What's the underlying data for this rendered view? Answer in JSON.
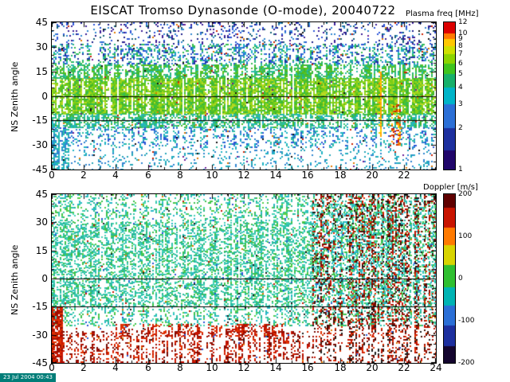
{
  "header": {
    "title": "EISCAT Tromso Dynasonde (O-mode),  20040722"
  },
  "footer": {
    "timestamp": "23 Jul 2004 00:43"
  },
  "chart_data": [
    {
      "type": "heatmap",
      "panel": "plasma-frequency",
      "ylabel": "NS Zenith angle",
      "xlabel": "",
      "xlim": [
        0,
        24
      ],
      "ylim": [
        -45,
        45
      ],
      "x_ticks": [
        0,
        2,
        4,
        6,
        8,
        10,
        12,
        14,
        16,
        18,
        20,
        22
      ],
      "y_ticks": [
        45,
        30,
        15,
        0,
        -15,
        -30,
        -45
      ],
      "reference_lines_y": [
        0,
        -15
      ],
      "seed": 20040722,
      "colorbar": {
        "label": "Plasma freq [MHz]",
        "scale": "log",
        "ticks": [
          12,
          10,
          9,
          8,
          7,
          6,
          5,
          4,
          3,
          2,
          1
        ],
        "segments": [
          {
            "from": 0.0,
            "to": 0.073,
            "color": "#dc0000"
          },
          {
            "from": 0.073,
            "to": 0.116,
            "color": "#ff7a00"
          },
          {
            "from": 0.116,
            "to": 0.163,
            "color": "#ffc800"
          },
          {
            "from": 0.163,
            "to": 0.217,
            "color": "#cfe000"
          },
          {
            "from": 0.217,
            "to": 0.279,
            "color": "#8cd400"
          },
          {
            "from": 0.279,
            "to": 0.352,
            "color": "#3fc41e"
          },
          {
            "from": 0.352,
            "to": 0.442,
            "color": "#17b06a"
          },
          {
            "from": 0.442,
            "to": 0.558,
            "color": "#00b4c8"
          },
          {
            "from": 0.558,
            "to": 0.721,
            "color": "#2b6fd6"
          },
          {
            "from": 0.721,
            "to": 0.87,
            "color": "#1d2f9e"
          },
          {
            "from": 0.87,
            "to": 1.0,
            "color": "#20066a"
          }
        ]
      },
      "pattern_notes": "Dense yellow-green echo band (4-6 MHz) between about -15 and +15 deg zenith all day; blue/dark sparse speckle above +20 deg; cyan speckle below -15 deg; white dropout near 20 h with yellow streak at 20.4 h; orange patch near 21.5 h.",
      "render_bands": [
        {
          "x": [
            0,
            24
          ],
          "y": [
            -11,
            11
          ],
          "density": 0.93,
          "gap": 0.02,
          "colors": [
            "#7ccf16",
            "#9ad41c",
            "#5bc41e",
            "#b8d922",
            "#45b827",
            "#35bd4f"
          ]
        },
        {
          "x": [
            0,
            24
          ],
          "y": [
            11,
            19
          ],
          "density": 0.6,
          "gap": 0.05,
          "colors": [
            "#45b827",
            "#35bd4f",
            "#28b77c",
            "#5bc41e",
            "#2abda5"
          ]
        },
        {
          "x": [
            0,
            24
          ],
          "y": [
            -19,
            -11
          ],
          "density": 0.55,
          "gap": 0.05,
          "colors": [
            "#28b77c",
            "#2abda5",
            "#3ec07a",
            "#1fb3c4",
            "#45b827"
          ]
        },
        {
          "x": [
            0,
            24
          ],
          "y": [
            19,
            32
          ],
          "density": 0.38,
          "gap": 0.06,
          "colors": [
            "#2b55d6",
            "#2f86d0",
            "#35bd4f",
            "#1d2f9e",
            "#1fb3c4",
            "#28b77c"
          ]
        },
        {
          "x": [
            0,
            24
          ],
          "y": [
            32,
            45
          ],
          "density": 0.17,
          "gap": 0.1,
          "colors": [
            "#1c1f8a",
            "#2b55d6",
            "#3a1d96",
            "#14617a",
            "#2f86d0"
          ]
        },
        {
          "x": [
            0,
            24
          ],
          "y": [
            -32,
            -19
          ],
          "density": 0.3,
          "gap": 0.08,
          "colors": [
            "#1fb3c4",
            "#2f86d0",
            "#2abda5",
            "#2b55d6"
          ]
        },
        {
          "x": [
            0,
            24
          ],
          "y": [
            -45,
            -32
          ],
          "density": 0.15,
          "gap": 0.15,
          "colors": [
            "#1fb3c4",
            "#2f86d0",
            "#25a4b8"
          ]
        },
        {
          "x": [
            0,
            1
          ],
          "y": [
            -45,
            -20
          ],
          "density": 0.5,
          "gap": 0.05,
          "colors": [
            "#1fb3c4",
            "#2abda5",
            "#2f86d0"
          ]
        },
        {
          "x": [
            0,
            24
          ],
          "y": [
            -45,
            45
          ],
          "density": 0.018,
          "gap": 0.3,
          "colors": [
            "#cc2200",
            "#e07a00",
            "#6a1d94",
            "#101010"
          ]
        },
        {
          "x": [
            20.3,
            20.6
          ],
          "y": [
            -25,
            15
          ],
          "density": 0.85,
          "gap": 0.0,
          "colors": [
            "#ffd400",
            "#ffaa00",
            "#ff8800"
          ]
        },
        {
          "x": [
            21.2,
            21.8
          ],
          "y": [
            -30,
            -5
          ],
          "density": 0.4,
          "gap": 0.1,
          "colors": [
            "#ff9900",
            "#ffd400",
            "#e05500",
            "#cc2200"
          ]
        }
      ]
    },
    {
      "type": "heatmap",
      "panel": "doppler",
      "ylabel": "NS Zenith angle",
      "xlabel": "",
      "xlim": [
        0,
        24
      ],
      "ylim": [
        -45,
        45
      ],
      "x_ticks": [
        0,
        2,
        4,
        6,
        8,
        10,
        12,
        14,
        16,
        18,
        20,
        22,
        24
      ],
      "y_ticks": [
        45,
        30,
        15,
        0,
        -15,
        -30,
        -45
      ],
      "reference_lines_y": [
        0,
        -15
      ],
      "seed": 722,
      "colorbar": {
        "label": "Doppler [m/s]",
        "scale": "linear",
        "ticks": [
          200,
          100,
          0,
          -100,
          -200
        ],
        "segments": [
          {
            "from": 0.0,
            "to": 0.08,
            "color": "#600000"
          },
          {
            "from": 0.08,
            "to": 0.2,
            "color": "#c81400"
          },
          {
            "from": 0.2,
            "to": 0.3,
            "color": "#ff7a00"
          },
          {
            "from": 0.3,
            "to": 0.42,
            "color": "#d8d400"
          },
          {
            "from": 0.42,
            "to": 0.55,
            "color": "#2fbf30"
          },
          {
            "from": 0.55,
            "to": 0.66,
            "color": "#00b4b4"
          },
          {
            "from": 0.66,
            "to": 0.78,
            "color": "#2b6fd6"
          },
          {
            "from": 0.78,
            "to": 0.9,
            "color": "#1d2f9e"
          },
          {
            "from": 0.9,
            "to": 1.0,
            "color": "#14052e"
          }
        ]
      },
      "pattern_notes": "Near-zero Doppler (cyan/green speckle) over most angles from 0-16 h; strong negative/red striped returns below -28 deg from 0-16 h and a red dashed band near -28 deg between 4-14 h; chaotic mixed red/black/cyan columns after 16 h.",
      "render_bands": [
        {
          "x": [
            0,
            24
          ],
          "y": [
            -25,
            45
          ],
          "density": 0.3,
          "gap": 0.05,
          "colors": [
            "#2fc4ad",
            "#46d3b5",
            "#3cc24e",
            "#29b79a",
            "#27b7c9",
            "#57cf49"
          ]
        },
        {
          "x": [
            0,
            16.3
          ],
          "y": [
            -15,
            30
          ],
          "density": 0.3,
          "gap": 0.05,
          "colors": [
            "#2fc4ad",
            "#46d3b5",
            "#29b79a",
            "#3cc24e"
          ]
        },
        {
          "x": [
            0,
            16.3
          ],
          "y": [
            -45,
            -28
          ],
          "density": 0.42,
          "gap": 0.3,
          "colors": [
            "#c81400",
            "#9e0e00",
            "#e03000",
            "#7a0a00"
          ]
        },
        {
          "x": [
            4,
            14.5
          ],
          "y": [
            -31,
            -24
          ],
          "density": 0.45,
          "gap": 0.25,
          "colors": [
            "#c81400",
            "#e03000",
            "#9e0e00"
          ]
        },
        {
          "x": [
            16.3,
            24
          ],
          "y": [
            -45,
            45
          ],
          "density": 0.33,
          "gap": 0.15,
          "colors": [
            "#c81400",
            "#9e0e00",
            "#1b1b1b",
            "#7a0a00",
            "#e03000",
            "#3a0d00"
          ]
        },
        {
          "x": [
            16.3,
            24
          ],
          "y": [
            -15,
            40
          ],
          "density": 0.22,
          "gap": 0.15,
          "colors": [
            "#2fc4ad",
            "#3cc24e",
            "#27b7c9"
          ]
        },
        {
          "x": [
            0,
            24
          ],
          "y": [
            -45,
            45
          ],
          "density": 0.02,
          "gap": 0.3,
          "colors": [
            "#1b1b1b",
            "#c81400",
            "#2b55d6",
            "#e07a00"
          ]
        },
        {
          "x": [
            0,
            0.6
          ],
          "y": [
            -45,
            -15
          ],
          "density": 0.7,
          "gap": 0.0,
          "colors": [
            "#c81400",
            "#e03000",
            "#9e0e00"
          ]
        }
      ]
    }
  ]
}
